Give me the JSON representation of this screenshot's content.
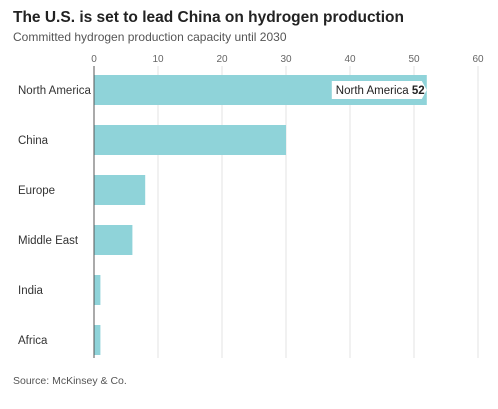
{
  "header": {
    "title": "The U.S. is set to lead China on hydrogen production",
    "subtitle": "Committed hydrogen production capacity until 2030"
  },
  "footer": {
    "source": "Source: McKinsey & Co."
  },
  "colors": {
    "bar": "#8fd3d9",
    "grid": "#e3e3e3",
    "axis": "#555555",
    "tooltip_bg": "#ffffff"
  },
  "tooltip": {
    "label": "North America",
    "value": "52"
  },
  "chart_data": {
    "type": "bar",
    "orientation": "horizontal",
    "categories": [
      "North America",
      "China",
      "Europe",
      "Middle East",
      "India",
      "Africa"
    ],
    "values": [
      52,
      30,
      8,
      6,
      1,
      1
    ],
    "title": "The U.S. is set to lead China on hydrogen production",
    "subtitle": "Committed hydrogen production capacity until 2030",
    "xlim": [
      0,
      60
    ],
    "xticks": [
      0,
      10,
      20,
      30,
      40,
      50,
      60
    ],
    "grid": true,
    "legend": "none"
  }
}
